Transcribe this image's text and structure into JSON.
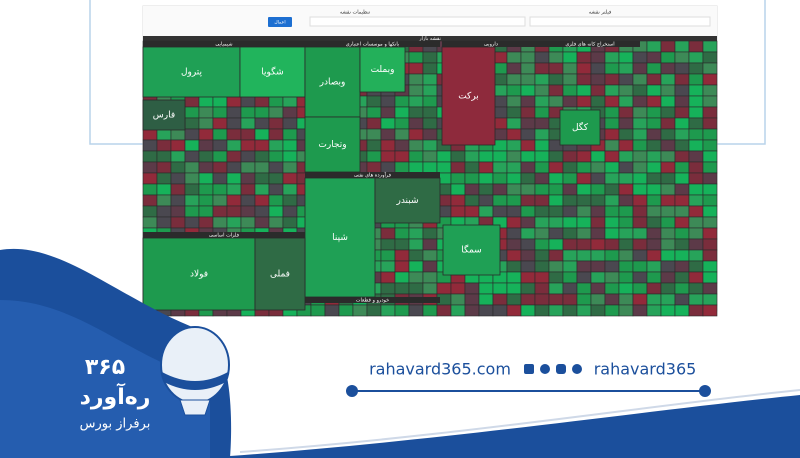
{
  "toolbar": {
    "filter_title": "فیلتر نقشه",
    "settings_title": "تنظیمات نقشه",
    "apply": "اعمال",
    "map_label": "نقشه بازار"
  },
  "sectors": [
    "شیمیایی",
    "بانکها و موسسات اعتباری",
    "دارویی",
    "استخراج کانه های فلزی",
    "فرآورده های نفتی",
    "فلزات اساسی",
    "خودرو و قطعات"
  ],
  "tiles": [
    "پترول",
    "شگویا",
    "وبصادر",
    "وبملت",
    "وتجارت",
    "برکت",
    "فارس",
    "شپنا",
    "شبندر",
    "فولاد",
    "فملی",
    "سمگا",
    "کگل"
  ],
  "contact": {
    "site": "rahavard365.com",
    "handle": "rahavard365"
  },
  "brand": {
    "number": "۳۶۵",
    "name": "ره‌آورد",
    "slogan": "برفراز بورس"
  }
}
